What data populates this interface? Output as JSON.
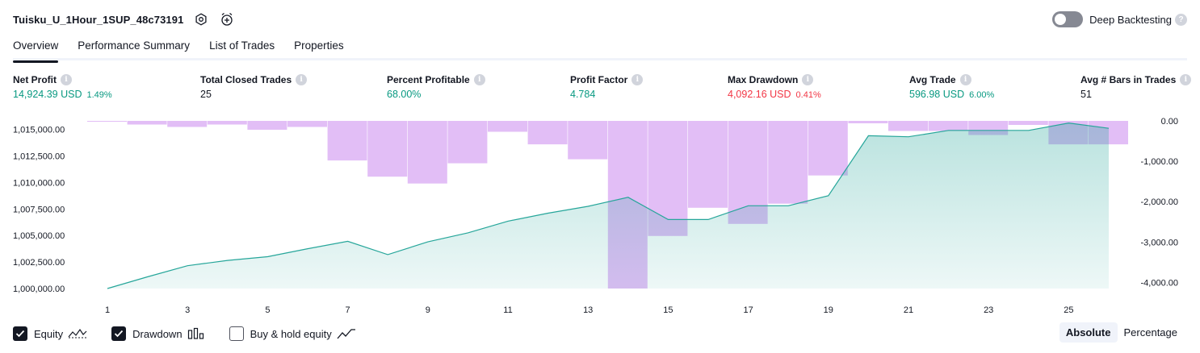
{
  "header": {
    "title": "Tuisku_U_1Hour_1SUP_48c73191",
    "deep_backtesting_label": "Deep Backtesting"
  },
  "tabs": [
    {
      "label": "Overview",
      "active": true
    },
    {
      "label": "Performance Summary",
      "active": false
    },
    {
      "label": "List of Trades",
      "active": false
    },
    {
      "label": "Properties",
      "active": false
    }
  ],
  "metrics": [
    {
      "label": "Net Profit",
      "value": "14,924.39 USD",
      "sub": "1.49%",
      "tone": "pos"
    },
    {
      "label": "Total Closed Trades",
      "value": "25",
      "sub": "",
      "tone": "neu"
    },
    {
      "label": "Percent Profitable",
      "value": "68.00%",
      "sub": "",
      "tone": "pos"
    },
    {
      "label": "Profit Factor",
      "value": "4.784",
      "sub": "",
      "tone": "pos"
    },
    {
      "label": "Max Drawdown",
      "value": "4,092.16 USD",
      "sub": "0.41%",
      "tone": "neg"
    },
    {
      "label": "Avg Trade",
      "value": "596.98 USD",
      "sub": "6.00%",
      "tone": "pos"
    },
    {
      "label": "Avg # Bars in Trades",
      "value": "51",
      "sub": "",
      "tone": "neu"
    }
  ],
  "chart_data": {
    "type": "area",
    "title": "",
    "trades": [
      1,
      2,
      3,
      4,
      5,
      6,
      7,
      8,
      9,
      10,
      11,
      12,
      13,
      14,
      15,
      16,
      17,
      18,
      19,
      20,
      21,
      22,
      23,
      24,
      25,
      26
    ],
    "x_tick_labels": [
      "1",
      "3",
      "5",
      "7",
      "9",
      "11",
      "13",
      "15",
      "17",
      "19",
      "21",
      "23",
      "25"
    ],
    "left_axis": {
      "ylim": [
        1000000,
        1015800
      ],
      "tick_labels": [
        "1,015,000.00",
        "1,012,500.00",
        "1,010,000.00",
        "1,007,500.00",
        "1,005,000.00",
        "1,002,500.00",
        "1,000,000.00"
      ],
      "tick_values": [
        1015000,
        1012500,
        1010000,
        1007500,
        1005000,
        1002500,
        1000000
      ]
    },
    "right_axis": {
      "ylim": [
        -4150,
        0
      ],
      "tick_labels": [
        "0.00",
        "-1,000.00",
        "-2,000.00",
        "-3,000.00",
        "-4,000.00"
      ],
      "tick_values": [
        0,
        -1000,
        -2000,
        -3000,
        -4000
      ]
    },
    "series": [
      {
        "name": "Equity",
        "axis": "left",
        "color": "#26a69a",
        "values": [
          1000000,
          1001100,
          1002150,
          1002650,
          1003000,
          1003750,
          1004450,
          1003200,
          1004400,
          1005250,
          1006350,
          1007100,
          1007750,
          1008600,
          1006500,
          1006500,
          1007800,
          1007800,
          1008750,
          1014400,
          1014300,
          1014900,
          1014900,
          1014900,
          1015600,
          1015100
        ]
      },
      {
        "name": "Drawdown",
        "axis": "right",
        "color": "#ce93f0",
        "values": [
          -10,
          -90,
          -150,
          -90,
          -220,
          -150,
          -980,
          -1380,
          -1550,
          -1050,
          -270,
          -580,
          -950,
          -4150,
          -2850,
          -2150,
          -2550,
          -2050,
          -1350,
          -60,
          -250,
          -250,
          -350,
          -100,
          -580,
          -580
        ]
      }
    ]
  },
  "legend": [
    {
      "label": "Equity",
      "checked": true,
      "icon": "equity-line-icon"
    },
    {
      "label": "Drawdown",
      "checked": true,
      "icon": "drawdown-bars-icon"
    },
    {
      "label": "Buy & hold equity",
      "checked": false,
      "icon": "buy-hold-line-icon"
    }
  ],
  "mode": {
    "absolute_label": "Absolute",
    "percentage_label": "Percentage",
    "active": "Absolute"
  },
  "icons": {
    "settings": "settings-icon",
    "alarm": "alarm-add-icon",
    "help": "help-icon",
    "info": "info-icon"
  }
}
